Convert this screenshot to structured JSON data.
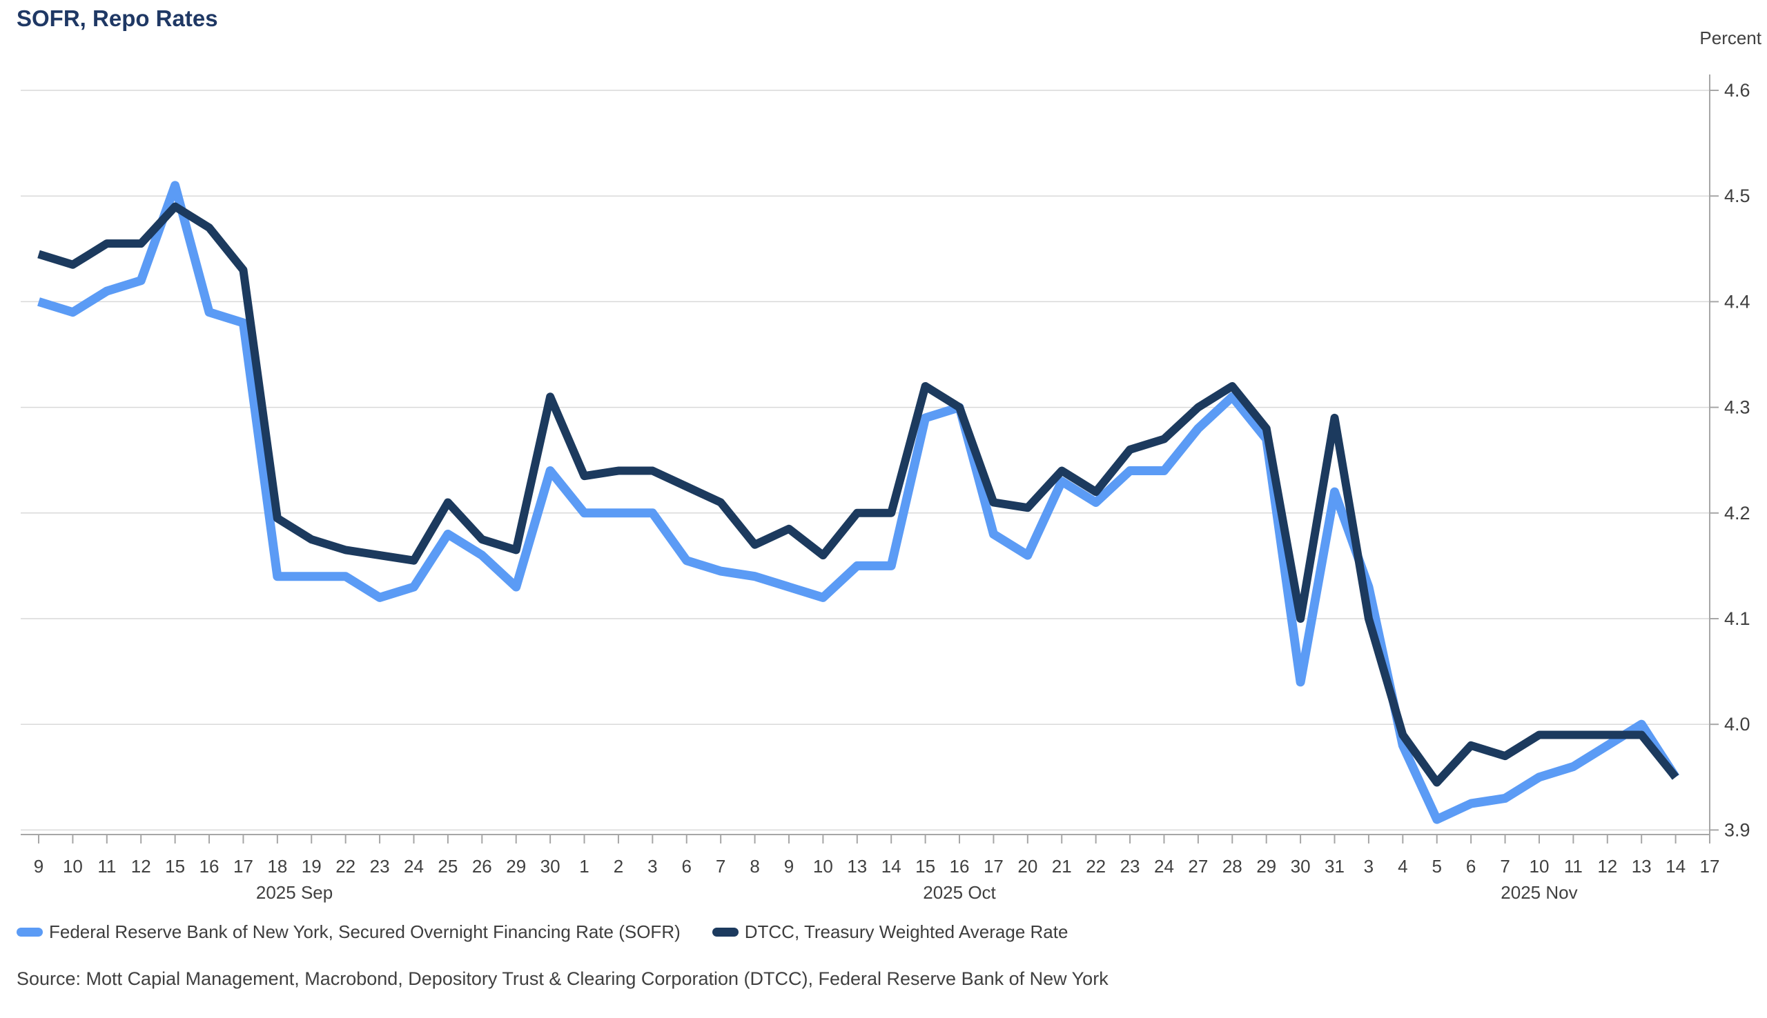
{
  "title": "SOFR, Repo Rates",
  "source": "Source: Mott Capial Management, Macrobond, Depository Trust & Clearing Corporation (DTCC), Federal Reserve Bank of New York",
  "chart_data": {
    "type": "line",
    "title": "SOFR, Repo Rates",
    "ylabel": "Percent",
    "ylim": [
      3.9,
      4.6
    ],
    "y_ticks": [
      "4.6",
      "4.5",
      "4.4",
      "4.3",
      "4.2",
      "4.1",
      "4.0",
      "3.9"
    ],
    "grid": true,
    "legend_position": "bottom",
    "categories": [
      "9",
      "10",
      "11",
      "12",
      "15",
      "16",
      "17",
      "18",
      "19",
      "22",
      "23",
      "24",
      "25",
      "26",
      "29",
      "30",
      "1",
      "2",
      "3",
      "6",
      "7",
      "8",
      "9",
      "10",
      "13",
      "14",
      "15",
      "16",
      "17",
      "20",
      "21",
      "22",
      "23",
      "24",
      "27",
      "28",
      "29",
      "30",
      "31",
      "3",
      "4",
      "5",
      "6",
      "7",
      "10",
      "11",
      "12",
      "13",
      "14",
      "17"
    ],
    "month_groups": [
      {
        "label": "2025 Sep",
        "start": 0,
        "end": 15
      },
      {
        "label": "2025 Oct",
        "start": 16,
        "end": 38
      },
      {
        "label": "2025 Nov",
        "start": 39,
        "end": 49
      }
    ],
    "series": [
      {
        "name": "Federal Reserve Bank of New York, Secured Overnight Financing Rate (SOFR)",
        "color": "#5B9BF5",
        "values": [
          4.4,
          4.39,
          4.41,
          4.42,
          4.51,
          4.39,
          4.38,
          4.14,
          4.14,
          4.14,
          4.12,
          4.13,
          4.18,
          4.16,
          4.13,
          4.24,
          4.2,
          4.2,
          4.2,
          4.155,
          4.145,
          4.14,
          4.13,
          4.12,
          4.15,
          4.15,
          4.29,
          4.3,
          4.18,
          4.16,
          4.23,
          4.21,
          4.24,
          4.24,
          4.28,
          4.31,
          4.27,
          4.04,
          4.22,
          4.13,
          3.98,
          3.91,
          3.925,
          3.93,
          3.95,
          3.96,
          3.98,
          4.0,
          3.95,
          null
        ]
      },
      {
        "name": "DTCC, Treasury Weighted Average Rate",
        "color": "#1C3A5E",
        "values": [
          4.445,
          4.435,
          4.455,
          4.455,
          4.49,
          4.47,
          4.43,
          4.195,
          4.175,
          4.165,
          4.16,
          4.155,
          4.21,
          4.175,
          4.165,
          4.31,
          4.235,
          4.24,
          4.24,
          4.225,
          4.21,
          4.17,
          4.185,
          4.16,
          4.2,
          4.2,
          4.32,
          4.3,
          4.21,
          4.205,
          4.24,
          4.22,
          4.26,
          4.27,
          4.3,
          4.32,
          4.28,
          4.1,
          4.29,
          4.1,
          3.99,
          3.945,
          3.98,
          3.97,
          3.99,
          3.99,
          3.99,
          3.99,
          3.95,
          null
        ]
      }
    ]
  }
}
